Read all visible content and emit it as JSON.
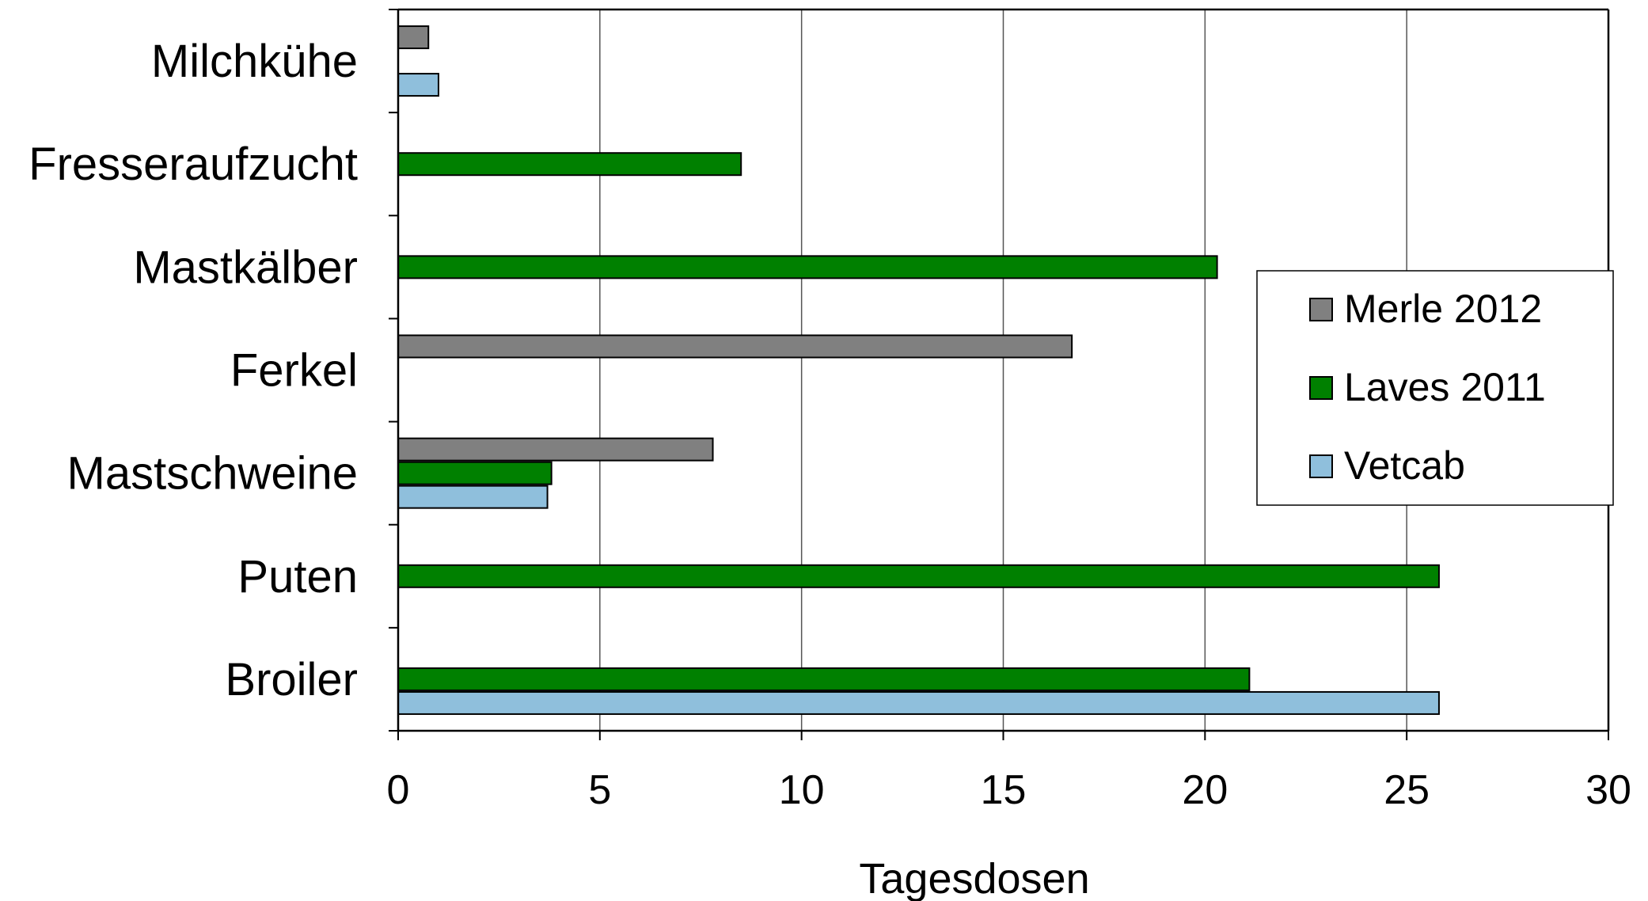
{
  "chart_data": {
    "type": "bar",
    "orientation": "horizontal",
    "categories": [
      "Milchkühe",
      "Fresseraufzucht",
      "Mastkälber",
      "Ferkel",
      "Mastschweine",
      "Puten",
      "Broiler"
    ],
    "series": [
      {
        "name": "Merle 2012",
        "color": "#808080",
        "values": [
          0.75,
          null,
          null,
          16.7,
          7.8,
          null,
          null
        ]
      },
      {
        "name": "Laves 2011",
        "color": "#008000",
        "values": [
          null,
          8.5,
          20.3,
          null,
          3.8,
          25.8,
          21.1
        ]
      },
      {
        "name": "Vetcab",
        "color": "#8fbfdc",
        "values": [
          1.0,
          null,
          null,
          null,
          3.7,
          null,
          25.8
        ]
      }
    ],
    "xlabel": "Tagesdosen",
    "xlim": [
      0,
      30
    ],
    "xticks": [
      "0",
      "5",
      "10",
      "15",
      "20",
      "25",
      "30"
    ],
    "grid": "vertical",
    "legend_position": "right"
  }
}
